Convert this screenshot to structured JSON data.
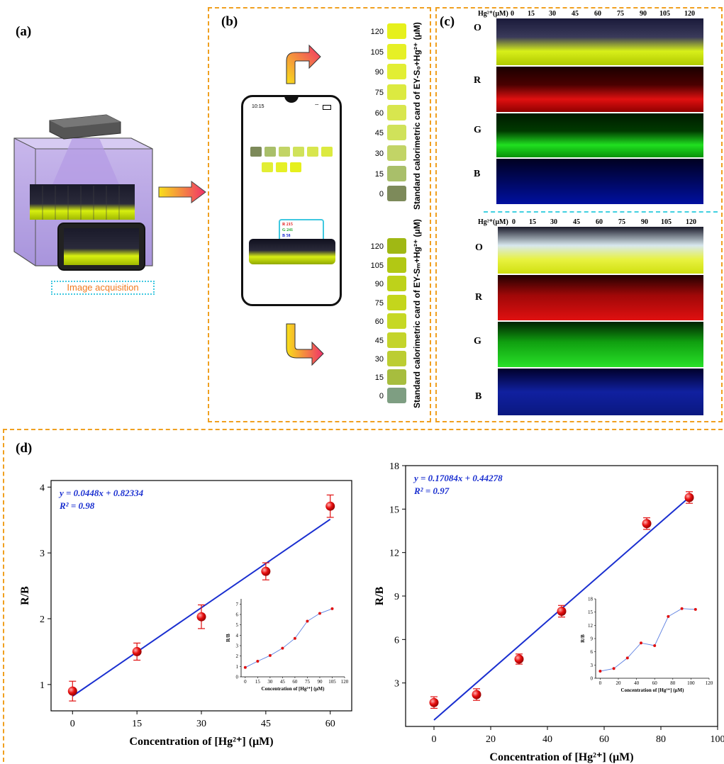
{
  "panels": {
    "a": "(a)",
    "b": "(b)",
    "c": "(c)",
    "d": "(d)"
  },
  "panel_a": {
    "caption": "Image acquisition"
  },
  "phone": {
    "time": "10:15",
    "rgb_r": "R 215",
    "rgb_g": "G 241",
    "rgb_b": "B 58"
  },
  "card_top": {
    "title": "Standard calorimetric card of EY-S₀+Hg²⁺ (μM)",
    "levels": [
      "120",
      "105",
      "90",
      "75",
      "60",
      "45",
      "30",
      "15",
      "0"
    ],
    "colors": [
      "#e6f01c",
      "#e6f026",
      "#e2ee34",
      "#dcea40",
      "#d8e64e",
      "#d0e25a",
      "#c2d466",
      "#a9bf6a",
      "#7d8a5a"
    ]
  },
  "card_bottom": {
    "title": "Standard calorimetric card of EY-Sₘ+Hg²⁺ (μM)",
    "levels": [
      "120",
      "105",
      "90",
      "75",
      "60",
      "45",
      "30",
      "15",
      "0"
    ],
    "colors": [
      "#a0b814",
      "#b2c814",
      "#bed21a",
      "#c4d61c",
      "#c6d824",
      "#c4d42a",
      "#bccd32",
      "#a7bd3e",
      "#7e9e82"
    ]
  },
  "panel_c": {
    "hg_label": "Hg²⁺(μM)",
    "concs": [
      "0",
      "15",
      "30",
      "45",
      "60",
      "75",
      "90",
      "105",
      "120"
    ],
    "rows": [
      "O",
      "R",
      "G",
      "B"
    ]
  },
  "colors": {
    "accent_line": "#1a2fd0",
    "marker": "#e01010",
    "dash_orange": "#f0a020",
    "dash_cyan": "#40d0e0"
  },
  "chart_data": [
    {
      "type": "scatter",
      "equation": "y = 0.0448x + 0.82334",
      "r2": "R² = 0.98",
      "xlabel": "Concentration of [Hg²⁺] (μM)",
      "ylabel": "R/B",
      "xlim": [
        -5,
        65
      ],
      "ylim": [
        0.6,
        4.1
      ],
      "xticks": [
        0,
        15,
        30,
        45,
        60
      ],
      "yticks": [
        1,
        2,
        3,
        4
      ],
      "x": [
        0,
        15,
        30,
        45,
        60
      ],
      "y": [
        0.9,
        1.5,
        2.03,
        2.72,
        3.71
      ],
      "err": [
        0.15,
        0.13,
        0.18,
        0.13,
        0.17
      ],
      "fit": {
        "slope": 0.0448,
        "intercept": 0.82334,
        "x_range": [
          0,
          60
        ]
      },
      "inset": {
        "type": "line",
        "xlabel": "Concentration of [Hg²⁺] (μM)",
        "ylabel": "R/B",
        "xlim": [
          -5,
          120
        ],
        "ylim": [
          0,
          7.5
        ],
        "xticks": [
          0,
          15,
          30,
          45,
          60,
          75,
          90,
          105,
          120
        ],
        "yticks": [
          0,
          1,
          2,
          3,
          4,
          5,
          6,
          7
        ],
        "x": [
          0,
          15,
          30,
          45,
          60,
          75,
          90,
          105
        ],
        "y": [
          0.9,
          1.5,
          2.05,
          2.75,
          3.7,
          5.35,
          6.1,
          6.55
        ]
      }
    },
    {
      "type": "scatter",
      "equation": "y = 0.17084x + 0.44278",
      "r2": "R² = 0.97",
      "xlabel": "Concentration of [Hg²⁺] (μM)",
      "ylabel": "R/B",
      "xlim": [
        -10,
        100
      ],
      "ylim": [
        0,
        18
      ],
      "xticks": [
        0,
        20,
        40,
        60,
        80,
        100
      ],
      "yticks": [
        3,
        6,
        9,
        12,
        15,
        18
      ],
      "x": [
        0,
        15,
        30,
        45,
        75,
        90
      ],
      "y": [
        1.65,
        2.2,
        4.65,
        7.95,
        14.0,
        15.8
      ],
      "err": [
        0.4,
        0.4,
        0.35,
        0.4,
        0.4,
        0.4
      ],
      "fit": {
        "slope": 0.17084,
        "intercept": 0.44278,
        "x_range": [
          0,
          90
        ]
      },
      "inset": {
        "type": "line",
        "xlabel": "Concentration of [Hg²⁺] (μM)",
        "ylabel": "R/B",
        "xlim": [
          -5,
          120
        ],
        "ylim": [
          0,
          18
        ],
        "xticks": [
          0,
          20,
          40,
          60,
          80,
          100,
          120
        ],
        "yticks": [
          0,
          3,
          6,
          9,
          12,
          15,
          18
        ],
        "x": [
          0,
          15,
          30,
          45,
          60,
          75,
          90,
          105
        ],
        "y": [
          1.6,
          2.2,
          4.6,
          8.0,
          7.4,
          14.0,
          15.8,
          15.6
        ]
      }
    }
  ]
}
